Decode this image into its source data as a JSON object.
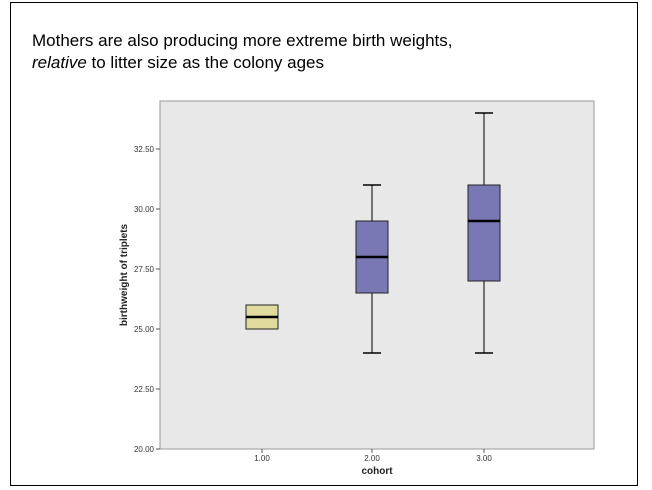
{
  "caption": {
    "line1": "Mothers are also producing more extreme birth weights,",
    "line2_emphasis": "relative",
    "line2_rest": " to litter size as the colony ages"
  },
  "colors": {
    "plot_background": "#e8e8e8",
    "box_cohort_1": "#e1dba0",
    "box_other": "#7a78b4",
    "median_line": "#000000",
    "whisker": "#000000"
  },
  "chart_data": {
    "type": "boxplot",
    "xlabel": "cohort",
    "ylabel": "birthweight of triplets",
    "ylim": [
      20.0,
      34.5
    ],
    "yticks": [
      20.0,
      22.5,
      25.0,
      27.5,
      30.0,
      32.5
    ],
    "ytick_labels": [
      "20.00",
      "22.50",
      "25.00",
      "27.50",
      "30.00",
      "32.50"
    ],
    "categories": [
      "1.00",
      "2.00",
      "3.00"
    ],
    "boxes": [
      {
        "category": "1.00",
        "min": 25.0,
        "q1": 25.0,
        "median": 25.5,
        "q3": 26.0,
        "max": 26.0
      },
      {
        "category": "2.00",
        "min": 24.0,
        "q1": 26.5,
        "median": 28.0,
        "q3": 29.5,
        "max": 31.0
      },
      {
        "category": "3.00",
        "min": 24.0,
        "q1": 27.0,
        "median": 29.5,
        "q3": 31.0,
        "max": 34.0
      }
    ],
    "grid": false
  }
}
